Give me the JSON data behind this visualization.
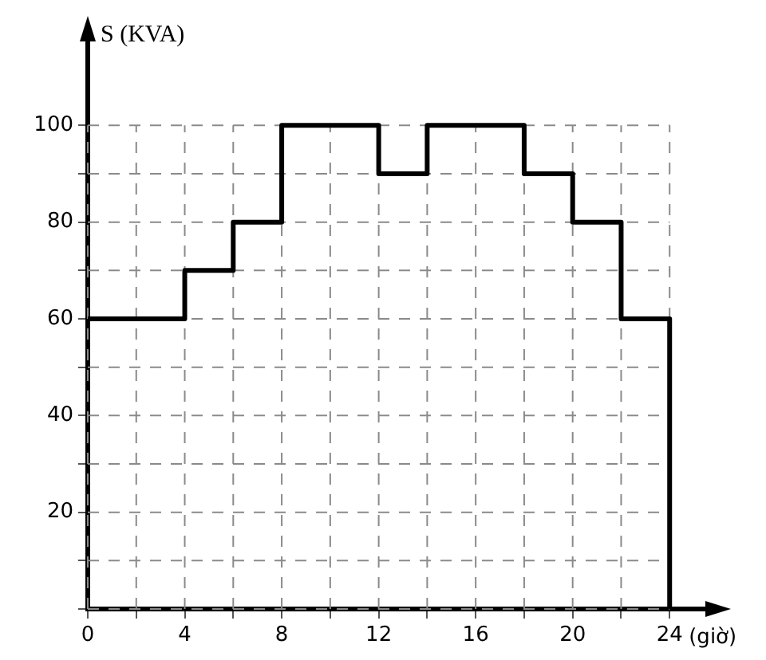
{
  "chart_data": {
    "type": "step",
    "ylabel": "S (KVA)",
    "xlabel": "(giờ)",
    "x": [
      0,
      4,
      6,
      8,
      12,
      14,
      18,
      20,
      22,
      24
    ],
    "values": [
      60,
      70,
      80,
      100,
      90,
      100,
      90,
      80,
      60,
      0
    ],
    "color": "#000000",
    "xlim": [
      0,
      26
    ],
    "ylim": [
      0,
      120
    ],
    "xticks": [
      0,
      {
        "value": 2,
        "label": null
      },
      4,
      {
        "value": 6,
        "label": null
      },
      8,
      {
        "value": 10,
        "label": null
      },
      12,
      {
        "value": 14,
        "label": null
      },
      16,
      {
        "value": 18,
        "label": null
      },
      20,
      {
        "value": 22,
        "label": null
      },
      24
    ],
    "yticks": [
      {
        "value": 0,
        "label": null
      },
      {
        "value": 10,
        "label": null
      },
      20,
      {
        "value": 30,
        "label": null
      },
      40,
      {
        "value": 50,
        "label": null
      },
      60,
      {
        "value": 70,
        "label": null
      },
      80,
      {
        "value": 90,
        "label": null
      },
      100
    ],
    "grid": true,
    "legend": false
  }
}
